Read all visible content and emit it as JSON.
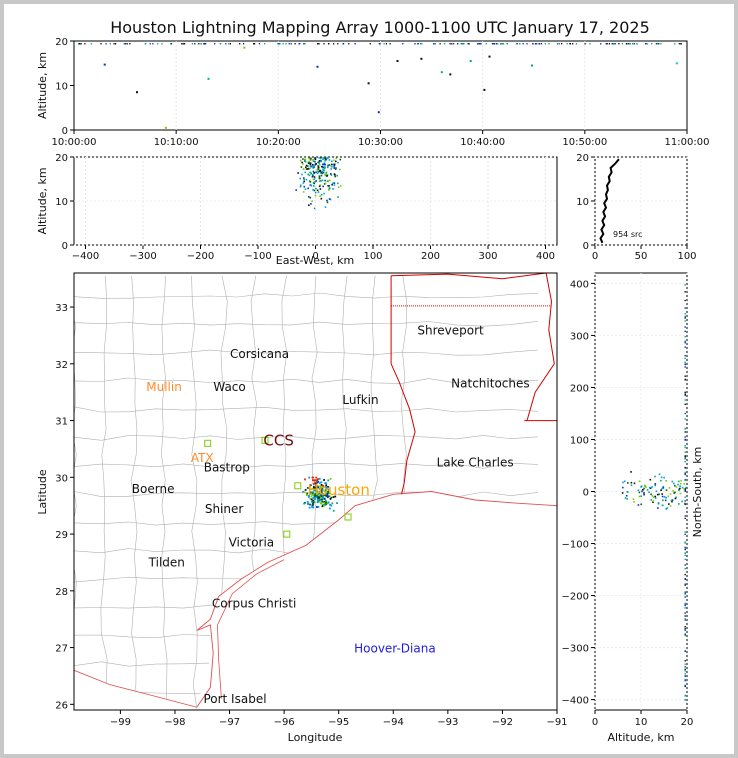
{
  "title": "Houston Lightning Mapping Array 1000-1100 UTC January 17, 2025",
  "colors": {
    "background": "#ffffff",
    "outer": "#c8c8c8",
    "county": "#b0b0b0",
    "state": "#d40000",
    "coast": "#e05050",
    "station_green": "#7ccd00",
    "label_dark": "#111111",
    "label_orange": "#ff8c2a",
    "label_blue": "#1e1ee0"
  },
  "time_panel": {
    "ylabel": "Altitude, km",
    "ylim": [
      0,
      20
    ],
    "yticks": [
      "0",
      "10",
      "20"
    ],
    "xticks": [
      "10:00:00",
      "10:10:00",
      "10:20:00",
      "10:30:00",
      "10:40:00",
      "10:50:00",
      "11:00:00"
    ],
    "points": [
      {
        "t": "10:03:00",
        "alt": 14.7,
        "c": "#0033cc"
      },
      {
        "t": "10:06:10",
        "alt": 8.5,
        "c": "#111111"
      },
      {
        "t": "10:09:00",
        "alt": 0.5,
        "c": "#7ccd00"
      },
      {
        "t": "10:13:10",
        "alt": 11.5,
        "c": "#00aa88"
      },
      {
        "t": "10:16:40",
        "alt": 18.5,
        "c": "#7ccd00"
      },
      {
        "t": "10:23:50",
        "alt": 14.2,
        "c": "#0033cc"
      },
      {
        "t": "10:28:50",
        "alt": 10.5,
        "c": "#111111"
      },
      {
        "t": "10:29:50",
        "alt": 4.0,
        "c": "#0033cc"
      },
      {
        "t": "10:31:40",
        "alt": 15.5,
        "c": "#111111"
      },
      {
        "t": "10:34:00",
        "alt": 16.0,
        "c": "#111111"
      },
      {
        "t": "10:36:00",
        "alt": 13.0,
        "c": "#00aa88"
      },
      {
        "t": "10:36:50",
        "alt": 12.5,
        "c": "#111111"
      },
      {
        "t": "10:38:50",
        "alt": 15.5,
        "c": "#00aa88"
      },
      {
        "t": "10:40:10",
        "alt": 9.0,
        "c": "#111111"
      },
      {
        "t": "10:40:40",
        "alt": 16.5,
        "c": "#111111"
      },
      {
        "t": "10:44:50",
        "alt": 14.5,
        "c": "#00aa88"
      },
      {
        "t": "10:59:00",
        "alt": 15.0,
        "c": "#00cccc"
      }
    ]
  },
  "ew_panel": {
    "ylabel": "Altitude, km",
    "xlabel": "East-West, km",
    "xlim": [
      -420,
      420
    ],
    "ylim": [
      0,
      20
    ],
    "xticks": [
      "-400",
      "-300",
      "-200",
      "-100",
      "0",
      "100",
      "200",
      "300",
      "400"
    ],
    "yticks": [
      "0",
      "10",
      "20"
    ]
  },
  "hist_panel": {
    "xlim": [
      0,
      100
    ],
    "ylim": [
      0,
      20
    ],
    "xticks": [
      "0",
      "50",
      "100"
    ],
    "yticks": [
      "0",
      "10",
      "20"
    ],
    "count_label": "954 src",
    "profile": [
      [
        8,
        0.5
      ],
      [
        6,
        1.5
      ],
      [
        9,
        2.5
      ],
      [
        7,
        3.5
      ],
      [
        10,
        4.5
      ],
      [
        8,
        5.5
      ],
      [
        11,
        6.5
      ],
      [
        9,
        7.5
      ],
      [
        12,
        8.5
      ],
      [
        10,
        9.5
      ],
      [
        13,
        10.5
      ],
      [
        12,
        11.5
      ],
      [
        14,
        12.5
      ],
      [
        13,
        13.5
      ],
      [
        16,
        14.5
      ],
      [
        15,
        15.5
      ],
      [
        18,
        16.5
      ],
      [
        17,
        17.5
      ],
      [
        22,
        18.5
      ],
      [
        26,
        19.5
      ]
    ]
  },
  "map_panel": {
    "xlabel": "Longitude",
    "ylabel": "Latitude",
    "xlim": [
      -99.85,
      -91.0
    ],
    "ylim": [
      25.9,
      33.6
    ],
    "xticks": [
      "-99",
      "-98",
      "-97",
      "-96",
      "-95",
      "-94",
      "-93",
      "-92",
      "-91"
    ],
    "yticks": [
      "26",
      "27",
      "28",
      "29",
      "30",
      "31",
      "32",
      "33"
    ],
    "cities": [
      {
        "name": "Shreveport",
        "lon": -92.95,
        "lat": 32.59,
        "color": "#111111",
        "size": 12
      },
      {
        "name": "Corsicana",
        "lon": -96.45,
        "lat": 32.17,
        "color": "#111111",
        "size": 12
      },
      {
        "name": "Natchitoches",
        "lon": -92.22,
        "lat": 31.65,
        "color": "#111111",
        "size": 12
      },
      {
        "name": "Mullin",
        "lon": -98.2,
        "lat": 31.59,
        "color": "#ff8c2a",
        "size": 12
      },
      {
        "name": "Waco",
        "lon": -97.0,
        "lat": 31.59,
        "color": "#111111",
        "size": 12
      },
      {
        "name": "Lufkin",
        "lon": -94.6,
        "lat": 31.36,
        "color": "#111111",
        "size": 12
      },
      {
        "name": "CCS",
        "lon": -96.1,
        "lat": 30.63,
        "color": "#6b1010",
        "size": 15
      },
      {
        "name": "ATX",
        "lon": -97.5,
        "lat": 30.34,
        "color": "#ff8c2a",
        "size": 12
      },
      {
        "name": "Lake Charles",
        "lon": -92.5,
        "lat": 30.26,
        "color": "#111111",
        "size": 12
      },
      {
        "name": "Bastrop",
        "lon": -97.05,
        "lat": 30.17,
        "color": "#111111",
        "size": 12
      },
      {
        "name": "Boerne",
        "lon": -98.4,
        "lat": 29.79,
        "color": "#111111",
        "size": 12
      },
      {
        "name": "Houston",
        "lon": -95.0,
        "lat": 29.76,
        "color": "#ffa500",
        "size": 15
      },
      {
        "name": "Shiner",
        "lon": -97.1,
        "lat": 29.44,
        "color": "#111111",
        "size": 12
      },
      {
        "name": "Victoria",
        "lon": -96.6,
        "lat": 28.85,
        "color": "#111111",
        "size": 12
      },
      {
        "name": "Tilden",
        "lon": -98.15,
        "lat": 28.5,
        "color": "#111111",
        "size": 12
      },
      {
        "name": "Corpus Christi",
        "lon": -96.55,
        "lat": 27.78,
        "color": "#111111",
        "size": 12
      },
      {
        "name": "Hoover-Diana",
        "lon": -93.97,
        "lat": 26.98,
        "color": "#1e1ee0",
        "size": 12
      },
      {
        "name": "Port Isabel",
        "lon": -96.9,
        "lat": 26.09,
        "color": "#111111",
        "size": 12
      }
    ],
    "stations": [
      {
        "lon": -97.4,
        "lat": 30.6
      },
      {
        "lon": -96.35,
        "lat": 30.65
      },
      {
        "lon": -95.95,
        "lat": 29.0
      },
      {
        "lon": -94.83,
        "lat": 29.3
      },
      {
        "lon": -95.75,
        "lat": 29.85
      }
    ]
  },
  "ns_panel": {
    "ylabel": "North-South, km",
    "xlabel": "Altitude, km",
    "xlim": [
      0,
      20
    ],
    "ylim": [
      -420,
      420
    ],
    "xticks": [
      "0",
      "10",
      "20"
    ],
    "yticks": [
      "-400",
      "-300",
      "-200",
      "-100",
      "0",
      "100",
      "200",
      "300",
      "400"
    ]
  },
  "chart_data": [
    {
      "type": "scatter",
      "title": "Houston Lightning Mapping Array 1000-1100 UTC January 17, 2025",
      "xlabel": "",
      "ylabel": "Altitude, km",
      "x_range": [
        "10:00:00",
        "11:00:00"
      ],
      "ylim": [
        0,
        20
      ],
      "grid": true
    },
    {
      "type": "scatter",
      "xlabel": "East-West, km",
      "ylabel": "Altitude, km",
      "xlim": [
        -420,
        420
      ],
      "ylim": [
        0,
        20
      ],
      "grid": true
    },
    {
      "type": "line",
      "xlim": [
        0,
        100
      ],
      "ylim": [
        0,
        20
      ],
      "annotation": "954 src",
      "grid": true
    },
    {
      "type": "scatter",
      "xlabel": "Longitude",
      "ylabel": "Latitude",
      "xlim": [
        -99.85,
        -91.0
      ],
      "ylim": [
        25.9,
        33.6
      ],
      "grid": false
    },
    {
      "type": "scatter",
      "xlabel": "Altitude, km",
      "ylabel": "North-South, km",
      "xlim": [
        0,
        20
      ],
      "ylim": [
        -420,
        420
      ],
      "grid": true
    }
  ]
}
